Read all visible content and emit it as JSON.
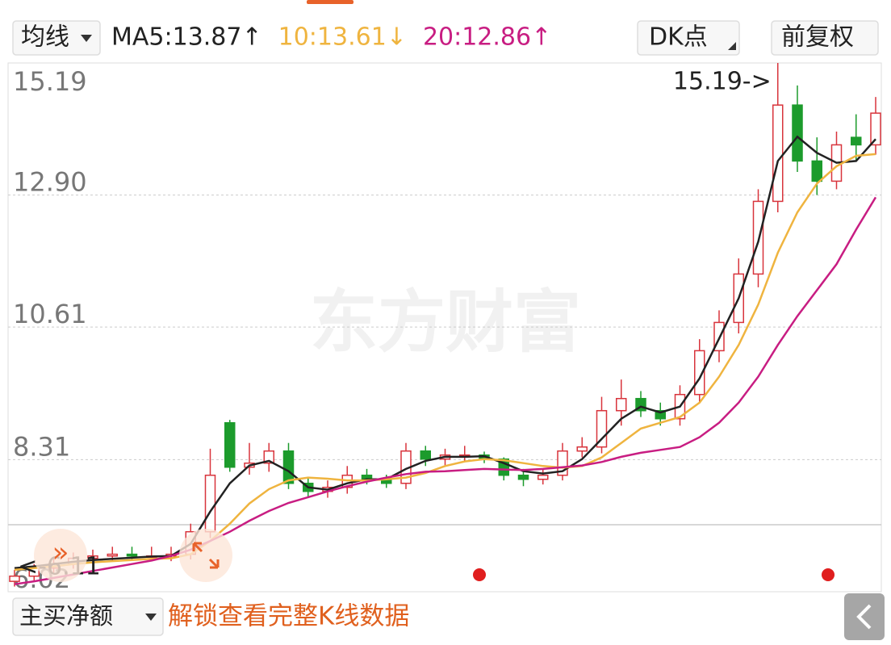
{
  "header": {
    "ma_menu": "均线",
    "dk": "DK点",
    "adjust": "前复权"
  },
  "chart_data": {
    "type": "candlestick",
    "watermark": "东方财富",
    "ylim": [
      6.02,
      15.19
    ],
    "yticks": [
      15.19,
      {
        "value": 12.9,
        "label": "12.90"
      },
      10.61,
      8.31,
      6.02
    ],
    "grid": true,
    "high_label": "15.19->",
    "low_label": "<-6.11",
    "candles": {
      "up_color": "#d8343c",
      "down_color": "#1c9b2c",
      "open": [
        6.2,
        6.29,
        6.43,
        6.5,
        6.6,
        6.64,
        6.67,
        6.64,
        6.64,
        6.67,
        7.06,
        8.95,
        8.18,
        8.25,
        8.46,
        7.9,
        7.76,
        7.83,
        8.04,
        7.97,
        7.9,
        8.46,
        8.32,
        8.39,
        8.39,
        8.32,
        8.04,
        7.97,
        8.04,
        8.46,
        8.53,
        9.16,
        9.37,
        9.16,
        9.02,
        9.44,
        10.2,
        10.69,
        11.53,
        12.79,
        14.46,
        13.49,
        13.14,
        13.9,
        13.77
      ],
      "high": [
        6.4,
        6.5,
        6.6,
        6.7,
        6.75,
        6.8,
        6.8,
        6.8,
        6.8,
        7.2,
        8.5,
        9.0,
        8.6,
        8.6,
        8.6,
        8.0,
        7.95,
        8.2,
        8.15,
        8.05,
        8.6,
        8.55,
        8.5,
        8.55,
        8.45,
        8.35,
        8.15,
        8.15,
        8.6,
        8.7,
        9.4,
        9.7,
        9.5,
        9.3,
        9.6,
        10.4,
        10.9,
        11.8,
        13.0,
        15.19,
        14.8,
        13.9,
        14.0,
        14.3,
        14.6
      ],
      "low": [
        6.11,
        6.2,
        6.35,
        6.42,
        6.5,
        6.55,
        6.58,
        6.55,
        6.55,
        6.58,
        6.95,
        8.1,
        8.05,
        8.1,
        7.8,
        7.65,
        7.65,
        7.72,
        7.88,
        7.82,
        7.8,
        8.2,
        8.2,
        8.28,
        8.25,
        7.95,
        7.85,
        7.88,
        7.95,
        8.35,
        8.42,
        8.9,
        9.05,
        8.9,
        8.9,
        9.3,
        10.0,
        10.5,
        11.3,
        12.6,
        13.3,
        12.9,
        13.0,
        13.5,
        13.6
      ],
      "close": [
        6.29,
        6.43,
        6.5,
        6.6,
        6.64,
        6.67,
        6.64,
        6.64,
        6.67,
        7.06,
        8.04,
        8.18,
        8.25,
        8.46,
        7.9,
        7.76,
        7.83,
        8.04,
        7.97,
        7.9,
        8.46,
        8.32,
        8.39,
        8.39,
        8.32,
        8.04,
        7.97,
        8.04,
        8.46,
        8.53,
        9.16,
        9.37,
        9.16,
        9.02,
        9.44,
        10.2,
        10.69,
        11.53,
        12.79,
        14.46,
        13.49,
        13.14,
        13.77,
        13.77,
        14.32
      ]
    },
    "series": [
      {
        "name": "MA5:13.87↑",
        "color": "#222222",
        "values": [
          6.43,
          6.46,
          6.5,
          6.54,
          6.57,
          6.59,
          6.61,
          6.63,
          6.64,
          6.85,
          7.41,
          7.9,
          8.21,
          8.29,
          8.11,
          7.83,
          7.79,
          7.9,
          7.97,
          7.97,
          8.15,
          8.29,
          8.36,
          8.36,
          8.37,
          8.25,
          8.11,
          8.07,
          8.11,
          8.32,
          8.67,
          9.02,
          9.23,
          9.13,
          9.23,
          9.72,
          10.41,
          11.11,
          12.09,
          13.49,
          13.91,
          13.63,
          13.46,
          13.49,
          13.87
        ]
      },
      {
        "name": "10:13.61↓",
        "color": "#efb43f",
        "values": [
          6.4,
          6.43,
          6.46,
          6.5,
          6.53,
          6.55,
          6.57,
          6.59,
          6.6,
          6.67,
          6.9,
          7.2,
          7.55,
          7.8,
          7.95,
          8.0,
          7.98,
          7.95,
          7.95,
          7.97,
          8.0,
          8.08,
          8.2,
          8.28,
          8.32,
          8.3,
          8.25,
          8.2,
          8.17,
          8.2,
          8.35,
          8.6,
          8.85,
          8.95,
          9.05,
          9.3,
          9.75,
          10.3,
          11.0,
          11.9,
          12.6,
          13.1,
          13.4,
          13.58,
          13.61
        ]
      },
      {
        "name": "20:12.86↑",
        "color": "#c81d82",
        "values": [
          6.15,
          6.2,
          6.26,
          6.32,
          6.38,
          6.44,
          6.5,
          6.56,
          6.64,
          6.75,
          6.9,
          7.06,
          7.25,
          7.42,
          7.56,
          7.66,
          7.76,
          7.85,
          7.93,
          8.0,
          8.06,
          8.1,
          8.11,
          8.13,
          8.15,
          8.14,
          8.13,
          8.15,
          8.18,
          8.21,
          8.27,
          8.36,
          8.43,
          8.48,
          8.53,
          8.7,
          8.95,
          9.3,
          9.75,
          10.3,
          10.8,
          11.25,
          11.7,
          12.3,
          12.86
        ]
      }
    ]
  },
  "footer": {
    "indicator": "主买净额",
    "unlock": "解锁查看完整K线数据"
  }
}
